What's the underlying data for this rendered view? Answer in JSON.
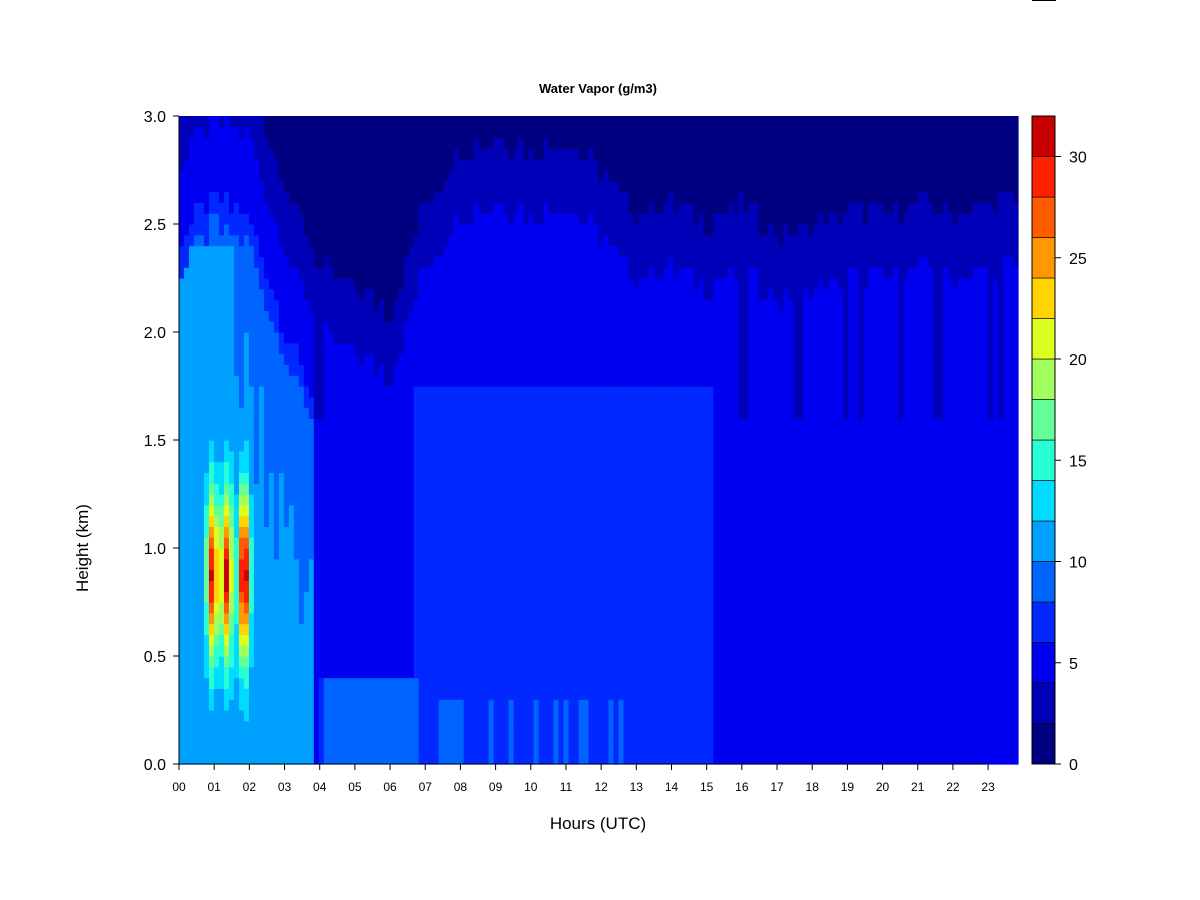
{
  "chart_data": {
    "type": "heatmap",
    "title": "Water Vapor (g/m3)",
    "xlabel": "Hours (UTC)",
    "ylabel": "Height (km)",
    "xlim": [
      0,
      23.85
    ],
    "ylim": [
      0,
      3.0
    ],
    "x_ticks": [
      {
        "value": 0,
        "label": "00"
      },
      {
        "value": 1,
        "label": "01"
      },
      {
        "value": 2,
        "label": "02"
      },
      {
        "value": 3,
        "label": "03"
      },
      {
        "value": 4,
        "label": "04"
      },
      {
        "value": 5,
        "label": "05"
      },
      {
        "value": 6,
        "label": "06"
      },
      {
        "value": 7,
        "label": "07"
      },
      {
        "value": 8,
        "label": "08"
      },
      {
        "value": 9,
        "label": "09"
      },
      {
        "value": 10,
        "label": "10"
      },
      {
        "value": 11,
        "label": "11"
      },
      {
        "value": 12,
        "label": "12"
      },
      {
        "value": 13,
        "label": "13"
      },
      {
        "value": 14,
        "label": "14"
      },
      {
        "value": 15,
        "label": "15"
      },
      {
        "value": 16,
        "label": "16"
      },
      {
        "value": 17,
        "label": "17"
      },
      {
        "value": 18,
        "label": "18"
      },
      {
        "value": 19,
        "label": "19"
      },
      {
        "value": 20,
        "label": "20"
      },
      {
        "value": 21,
        "label": "21"
      },
      {
        "value": 22,
        "label": "22"
      },
      {
        "value": 23,
        "label": "23"
      }
    ],
    "y_ticks": [
      {
        "value": 0.0,
        "label": "0.0"
      },
      {
        "value": 0.5,
        "label": "0.5"
      },
      {
        "value": 1.0,
        "label": "1.0"
      },
      {
        "value": 1.5,
        "label": "1.5"
      },
      {
        "value": 2.0,
        "label": "2.0"
      },
      {
        "value": 2.5,
        "label": "2.5"
      },
      {
        "value": 3.0,
        "label": "3.0"
      }
    ],
    "colorbar": {
      "range": [
        0,
        32
      ],
      "levels": [
        0,
        2,
        4,
        6,
        8,
        10,
        12,
        14,
        16,
        18,
        20,
        22,
        24,
        26,
        28,
        30,
        32
      ],
      "colors": [
        "#000080",
        "#0000B8",
        "#0000F0",
        "#0028FF",
        "#0064FF",
        "#00A0FF",
        "#00DCFF",
        "#28FFD4",
        "#64FF98",
        "#A0FF5C",
        "#DCFF20",
        "#FFD400",
        "#FF9800",
        "#FF5C00",
        "#FF2000",
        "#C80000"
      ],
      "ticks": [
        {
          "value": 0,
          "label": "0"
        },
        {
          "value": 5,
          "label": "5"
        },
        {
          "value": 10,
          "label": "10"
        },
        {
          "value": 15,
          "label": "15"
        },
        {
          "value": 20,
          "label": "20"
        },
        {
          "value": 25,
          "label": "25"
        },
        {
          "value": 30,
          "label": "30"
        }
      ]
    },
    "field_notes": {
      "surface_moist_layer_top_km": [
        [
          0,
          2.8
        ],
        [
          1,
          3.0
        ],
        [
          2,
          2.9
        ],
        [
          3,
          2.4
        ],
        [
          4,
          2.0
        ],
        [
          5,
          1.9
        ],
        [
          6,
          1.8
        ],
        [
          7,
          2.3
        ],
        [
          8,
          2.55
        ],
        [
          9,
          2.6
        ],
        [
          10,
          2.55
        ],
        [
          11,
          2.6
        ],
        [
          12,
          2.45
        ],
        [
          13,
          2.25
        ],
        [
          14,
          2.3
        ],
        [
          15,
          2.2
        ],
        [
          16,
          2.3
        ],
        [
          17,
          2.15
        ],
        [
          18,
          2.2
        ],
        [
          19,
          2.25
        ],
        [
          20,
          2.25
        ],
        [
          21,
          2.3
        ],
        [
          22,
          2.25
        ],
        [
          23,
          2.3
        ]
      ],
      "moist_peak_hours": [
        0.95,
        1.35,
        1.85
      ],
      "moist_peak_height_km": 0.88,
      "moist_peak_value": 32
    }
  }
}
